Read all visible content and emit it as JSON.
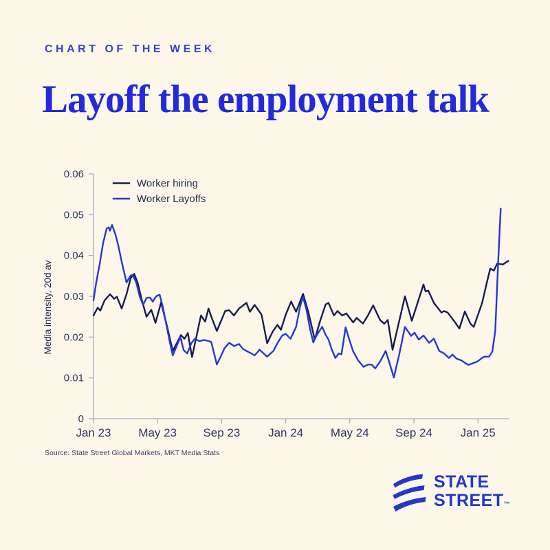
{
  "page": {
    "kicker": "CHART OF THE WEEK",
    "title": "Layoff the employment talk",
    "source": "Source: State Street Global Markets, MKT Media Stats",
    "background": "#FCF7E9"
  },
  "brand": {
    "line1": "STATE",
    "line2": "STREET",
    "trademark": "™",
    "logo_color": "#2337CE"
  },
  "colors": {
    "kicker_blue": "#3844CE",
    "title_blue": "#232ADB",
    "axis_line": "#A9ACBC",
    "tick_text": "#2E3464",
    "hiring_navy": "#171B52",
    "layoffs_blue": "#2437DB"
  },
  "chart_data": {
    "type": "line",
    "title": "",
    "xlabel": "",
    "ylabel": "Media intensity, 20d av",
    "ylim": [
      0,
      0.06
    ],
    "yticks": [
      0,
      0.01,
      0.02,
      0.03,
      0.04,
      0.05,
      0.06
    ],
    "ytick_labels": [
      "0",
      "0.01",
      "0.02",
      "0.03",
      "0.04",
      "0.05",
      "0.06"
    ],
    "x_unit": "months since Jan 2023",
    "xlim": [
      0,
      25.9
    ],
    "xticks": [
      0,
      4,
      8,
      12,
      16,
      20,
      24
    ],
    "xtick_labels": [
      "Jan 23",
      "May 23",
      "Sep 23",
      "Jan 24",
      "May 24",
      "Sep 24",
      "Jan 25"
    ],
    "grid": false,
    "legend_position": "top-left",
    "series": [
      {
        "name": "Worker hiring",
        "color": "#171B52",
        "points": [
          [
            0,
            0.0253
          ],
          [
            0.26,
            0.0272
          ],
          [
            0.43,
            0.0265
          ],
          [
            0.69,
            0.029
          ],
          [
            1.03,
            0.0305
          ],
          [
            1.29,
            0.0294
          ],
          [
            1.46,
            0.0299
          ],
          [
            1.76,
            0.027
          ],
          [
            2.06,
            0.0305
          ],
          [
            2.32,
            0.0345
          ],
          [
            2.54,
            0.0355
          ],
          [
            2.75,
            0.0334
          ],
          [
            3.01,
            0.0292
          ],
          [
            3.31,
            0.025
          ],
          [
            3.61,
            0.0267
          ],
          [
            3.87,
            0.0235
          ],
          [
            4.22,
            0.0285
          ],
          [
            4.6,
            0.0225
          ],
          [
            4.95,
            0.0166
          ],
          [
            5.46,
            0.0205
          ],
          [
            5.68,
            0.0196
          ],
          [
            5.89,
            0.021
          ],
          [
            6.15,
            0.0151
          ],
          [
            6.71,
            0.0253
          ],
          [
            6.97,
            0.0238
          ],
          [
            7.18,
            0.027
          ],
          [
            7.4,
            0.0245
          ],
          [
            7.7,
            0.0215
          ],
          [
            8.22,
            0.0264
          ],
          [
            8.47,
            0.0266
          ],
          [
            8.77,
            0.0253
          ],
          [
            9.08,
            0.027
          ],
          [
            9.55,
            0.0284
          ],
          [
            9.76,
            0.0262
          ],
          [
            10.06,
            0.0279
          ],
          [
            10.49,
            0.0255
          ],
          [
            10.84,
            0.0185
          ],
          [
            11.18,
            0.0213
          ],
          [
            11.48,
            0.023
          ],
          [
            11.7,
            0.0218
          ],
          [
            12,
            0.0255
          ],
          [
            12.34,
            0.0287
          ],
          [
            12.65,
            0.0262
          ],
          [
            13.08,
            0.0306
          ],
          [
            13.42,
            0.026
          ],
          [
            13.81,
            0.0194
          ],
          [
            14.15,
            0.024
          ],
          [
            14.49,
            0.028
          ],
          [
            14.67,
            0.0284
          ],
          [
            15.01,
            0.0253
          ],
          [
            15.23,
            0.0264
          ],
          [
            15.53,
            0.0253
          ],
          [
            15.78,
            0.0258
          ],
          [
            16.21,
            0.0236
          ],
          [
            16.43,
            0.0247
          ],
          [
            16.82,
            0.0233
          ],
          [
            17.16,
            0.0255
          ],
          [
            17.46,
            0.0278
          ],
          [
            17.89,
            0.0242
          ],
          [
            18.15,
            0.0233
          ],
          [
            18.37,
            0.0242
          ],
          [
            18.67,
            0.0169
          ],
          [
            19.44,
            0.03
          ],
          [
            19.87,
            0.024
          ],
          [
            20.6,
            0.0329
          ],
          [
            20.73,
            0.0312
          ],
          [
            20.9,
            0.0314
          ],
          [
            21.25,
            0.0284
          ],
          [
            21.72,
            0.026
          ],
          [
            21.89,
            0.0264
          ],
          [
            22.11,
            0.026
          ],
          [
            22.54,
            0.0238
          ],
          [
            22.84,
            0.0221
          ],
          [
            23.18,
            0.0263
          ],
          [
            23.53,
            0.0233
          ],
          [
            23.74,
            0.0225
          ],
          [
            24.26,
            0.0284
          ],
          [
            24.56,
            0.0334
          ],
          [
            24.77,
            0.0368
          ],
          [
            24.99,
            0.0363
          ],
          [
            25.2,
            0.038
          ],
          [
            25.55,
            0.0378
          ],
          [
            25.9,
            0.0387
          ]
        ]
      },
      {
        "name": "Worker Layoffs",
        "color": "#2437DB",
        "points": [
          [
            0,
            0.029
          ],
          [
            0.17,
            0.0334
          ],
          [
            0.39,
            0.038
          ],
          [
            0.6,
            0.0431
          ],
          [
            0.82,
            0.0466
          ],
          [
            0.95,
            0.0469
          ],
          [
            1.03,
            0.0461
          ],
          [
            1.16,
            0.0475
          ],
          [
            1.38,
            0.045
          ],
          [
            1.55,
            0.0424
          ],
          [
            1.76,
            0.0385
          ],
          [
            2.06,
            0.0334
          ],
          [
            2.32,
            0.0351
          ],
          [
            2.45,
            0.0352
          ],
          [
            2.67,
            0.0334
          ],
          [
            2.88,
            0.03
          ],
          [
            3.1,
            0.0279
          ],
          [
            3.31,
            0.0296
          ],
          [
            3.53,
            0.0297
          ],
          [
            3.7,
            0.0287
          ],
          [
            3.91,
            0.03
          ],
          [
            4.13,
            0.0304
          ],
          [
            4.34,
            0.0272
          ],
          [
            4.56,
            0.0228
          ],
          [
            4.77,
            0.0187
          ],
          [
            4.95,
            0.0155
          ],
          [
            5.16,
            0.0175
          ],
          [
            5.42,
            0.02
          ],
          [
            5.63,
            0.0168
          ],
          [
            5.85,
            0.016
          ],
          [
            6.11,
            0.0185
          ],
          [
            6.32,
            0.0196
          ],
          [
            6.62,
            0.019
          ],
          [
            6.88,
            0.0193
          ],
          [
            7.14,
            0.0191
          ],
          [
            7.35,
            0.0188
          ],
          [
            7.53,
            0.016
          ],
          [
            7.7,
            0.0133
          ],
          [
            7.91,
            0.015
          ],
          [
            8.17,
            0.0172
          ],
          [
            8.47,
            0.0186
          ],
          [
            8.77,
            0.0178
          ],
          [
            9.08,
            0.0183
          ],
          [
            9.33,
            0.0171
          ],
          [
            9.55,
            0.0166
          ],
          [
            9.76,
            0.0162
          ],
          [
            10.06,
            0.0155
          ],
          [
            10.37,
            0.0169
          ],
          [
            10.62,
            0.016
          ],
          [
            10.84,
            0.0152
          ],
          [
            11.05,
            0.016
          ],
          [
            11.23,
            0.0166
          ],
          [
            11.48,
            0.0185
          ],
          [
            11.78,
            0.0204
          ],
          [
            12,
            0.0208
          ],
          [
            12.3,
            0.0196
          ],
          [
            12.65,
            0.0225
          ],
          [
            12.9,
            0.0276
          ],
          [
            13.08,
            0.0298
          ],
          [
            13.29,
            0.0268
          ],
          [
            13.51,
            0.0221
          ],
          [
            13.72,
            0.0187
          ],
          [
            13.94,
            0.0205
          ],
          [
            14.15,
            0.0218
          ],
          [
            14.28,
            0.0225
          ],
          [
            14.49,
            0.0206
          ],
          [
            14.67,
            0.0194
          ],
          [
            14.88,
            0.0169
          ],
          [
            15.1,
            0.0149
          ],
          [
            15.31,
            0.016
          ],
          [
            15.48,
            0.0158
          ],
          [
            15.74,
            0.0224
          ],
          [
            16,
            0.019
          ],
          [
            16.21,
            0.0165
          ],
          [
            16.52,
            0.0143
          ],
          [
            16.86,
            0.0127
          ],
          [
            17.16,
            0.0133
          ],
          [
            17.38,
            0.0132
          ],
          [
            17.59,
            0.0123
          ],
          [
            17.89,
            0.014
          ],
          [
            18.24,
            0.0166
          ],
          [
            18.45,
            0.014
          ],
          [
            18.75,
            0.0101
          ],
          [
            19.1,
            0.016
          ],
          [
            19.44,
            0.0225
          ],
          [
            19.83,
            0.0203
          ],
          [
            20.04,
            0.0211
          ],
          [
            20.3,
            0.0194
          ],
          [
            20.6,
            0.0204
          ],
          [
            20.95,
            0.0186
          ],
          [
            21.25,
            0.0196
          ],
          [
            21.59,
            0.0166
          ],
          [
            21.89,
            0.016
          ],
          [
            22.19,
            0.0149
          ],
          [
            22.41,
            0.0157
          ],
          [
            22.67,
            0.0147
          ],
          [
            22.97,
            0.0143
          ],
          [
            23.18,
            0.0137
          ],
          [
            23.4,
            0.0132
          ],
          [
            23.7,
            0.0136
          ],
          [
            23.96,
            0.014
          ],
          [
            24.26,
            0.0149
          ],
          [
            24.39,
            0.0152
          ],
          [
            24.69,
            0.0152
          ],
          [
            24.9,
            0.0165
          ],
          [
            25.08,
            0.0216
          ],
          [
            25.2,
            0.0329
          ],
          [
            25.33,
            0.0441
          ],
          [
            25.42,
            0.0515
          ]
        ]
      }
    ]
  }
}
